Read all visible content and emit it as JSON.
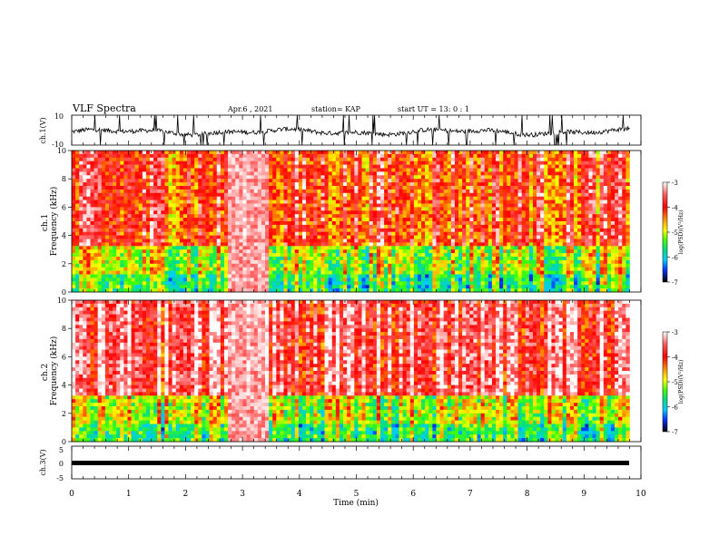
{
  "header": {
    "title": "VLF Spectra",
    "date": "Apr.6  , 2021",
    "station": "station= KAP",
    "start": "start  UT  =   13: 0  : 1"
  },
  "chart_data": [
    {
      "type": "line",
      "panel": "ch1-waveform",
      "ylabel": "ch.1(V)",
      "ylim": [
        -10,
        10
      ],
      "y_ticks": [
        "10",
        "-10"
      ],
      "xlim": [
        0,
        10
      ],
      "description_values": "noisy waveform centered near 0 V with frequent spikes reaching the ±10 V limits"
    },
    {
      "type": "heatmap",
      "panel": "ch1-spectrogram",
      "ylabel": "ch.1\nFrequency  (kHz)",
      "ylim": [
        0,
        10
      ],
      "y_ticks": [
        "0",
        "2",
        "4",
        "6",
        "8",
        "10"
      ],
      "xlim": [
        0,
        9.8
      ],
      "colorbar": {
        "label": "log(PSD)(V²/Hz)",
        "ticks": [
          "-3",
          "-4",
          "-5",
          "-6",
          "-7"
        ],
        "range": [
          -7,
          -3
        ]
      },
      "features": [
        {
          "band_khz": [
            0,
            1.2
          ],
          "level": -5.5
        },
        {
          "band_khz": [
            1.2,
            3.2
          ],
          "level": -5.0
        },
        {
          "band_khz": [
            3.2,
            10
          ],
          "level": -4.0
        },
        {
          "enhanced_interval_min": [
            2.75,
            3.45
          ],
          "level": -3.3
        }
      ]
    },
    {
      "type": "heatmap",
      "panel": "ch2-spectrogram",
      "ylabel": "ch.2\nFrequency  (kHz)",
      "ylim": [
        0,
        10
      ],
      "y_ticks": [
        "0",
        "2",
        "4",
        "6",
        "8",
        "10"
      ],
      "xlim": [
        0,
        9.8
      ],
      "colorbar": {
        "label": "log(PSD)(V²/Hz)",
        "ticks": [
          "-3",
          "-4",
          "-5",
          "-6",
          "-7"
        ],
        "range": [
          -7,
          -3
        ]
      },
      "features": [
        {
          "band_khz": [
            0,
            1.2
          ],
          "level": -5.5
        },
        {
          "band_khz": [
            1.2,
            3.2
          ],
          "level": -5.0
        },
        {
          "band_khz": [
            3.2,
            10
          ],
          "level": -3.6
        },
        {
          "enhanced_interval_min": [
            2.75,
            3.45
          ],
          "level": -3.3
        }
      ]
    },
    {
      "type": "line",
      "panel": "ch3-waveform",
      "ylabel": "ch.3(V)",
      "ylim": [
        -5,
        5
      ],
      "y_ticks": [
        "5",
        "0",
        "-5"
      ],
      "xlim": [
        0,
        10
      ],
      "constant_value": 0
    }
  ],
  "x_axis": {
    "label": "Time  (min)",
    "ticks": [
      "0",
      "1",
      "2",
      "3",
      "4",
      "5",
      "6",
      "7",
      "8",
      "9",
      "10"
    ]
  }
}
